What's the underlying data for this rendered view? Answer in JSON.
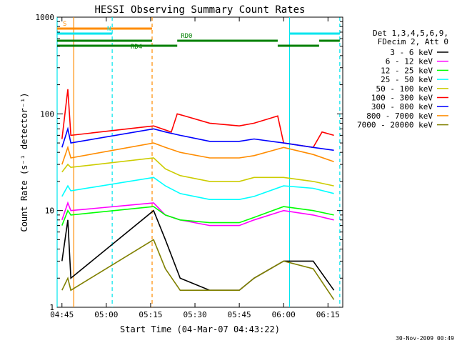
{
  "chart_data": {
    "type": "line",
    "title": "HESSI Observing Summary Count Rates",
    "xlabel": "Start Time (04-Mar-07 04:43:22)",
    "ylabel": "Count Rate (s⁻¹ detector⁻¹)",
    "yscale": "log",
    "ylim": [
      1,
      1000
    ],
    "xlim": [
      "04:43:22",
      "06:20:00"
    ],
    "x_ticks": [
      "04:45",
      "05:00",
      "05:15",
      "05:30",
      "05:45",
      "06:00",
      "06:15"
    ],
    "y_ticks": [
      "1",
      "10",
      "100",
      "1000"
    ],
    "legend_position": "right",
    "legend_header": [
      "Det 1,3,4,5,6,9,",
      "FDecim 2, Att 0"
    ],
    "footer_date": "30-Nov-2009 00:49",
    "vertical_markers": [
      {
        "time": "04:43:22",
        "color": "#00e5ee",
        "style": "solid"
      },
      {
        "time": "04:49:00",
        "color": "#ff8c00",
        "style": "solid"
      },
      {
        "time": "05:02:00",
        "color": "#00e5ee",
        "style": "dashed"
      },
      {
        "time": "05:15:30",
        "color": "#ff8c00",
        "style": "dashed"
      },
      {
        "time": "06:02:00",
        "color": "#00e5ee",
        "style": "solid"
      },
      {
        "time": "06:19:00",
        "color": "#00e5ee",
        "style": "dashed"
      }
    ],
    "flag_bars": [
      {
        "label": "S",
        "color": "#ff8c00",
        "segments": [
          [
            "04:43:22",
            "05:15:30"
          ]
        ]
      },
      {
        "label": "N",
        "color": "#00e5ee",
        "segments": [
          [
            "04:43:22",
            "05:02:00"
          ],
          [
            "06:02:00",
            "06:19:00"
          ]
        ]
      },
      {
        "label": "RD0",
        "color": "#008000",
        "segments": [
          [
            "04:43:22",
            "05:15:30"
          ],
          [
            "05:24:00",
            "05:58:00"
          ],
          [
            "06:12:00",
            "06:19:00"
          ]
        ]
      },
      {
        "label": "RD4",
        "color": "#008000",
        "segments": [
          [
            "04:43:22",
            "05:15:30"
          ],
          [
            "05:15:30",
            "05:24:00"
          ],
          [
            "05:58:00",
            "06:12:00"
          ]
        ]
      }
    ],
    "series": [
      {
        "name": "3 - 6 keV",
        "color": "#000000",
        "points": [
          [
            "04:45",
            3
          ],
          [
            "04:47",
            8
          ],
          [
            "04:48",
            2
          ],
          [
            "05:16",
            10
          ],
          [
            "05:20",
            5
          ],
          [
            "05:25",
            2
          ],
          [
            "05:35",
            1.5
          ],
          [
            "05:45",
            1.5
          ],
          [
            "05:50",
            2
          ],
          [
            "06:00",
            3
          ],
          [
            "06:10",
            3
          ],
          [
            "06:17",
            1.5
          ]
        ]
      },
      {
        "name": "6 - 12 keV",
        "color": "#ff00ff",
        "points": [
          [
            "04:45",
            8
          ],
          [
            "04:47",
            12
          ],
          [
            "04:48",
            10
          ],
          [
            "05:16",
            12
          ],
          [
            "05:20",
            9
          ],
          [
            "05:25",
            8
          ],
          [
            "05:35",
            7
          ],
          [
            "05:45",
            7
          ],
          [
            "05:50",
            8
          ],
          [
            "06:00",
            10
          ],
          [
            "06:10",
            9
          ],
          [
            "06:17",
            8
          ]
        ]
      },
      {
        "name": "12 - 25 keV",
        "color": "#00ff00",
        "points": [
          [
            "04:45",
            7
          ],
          [
            "04:47",
            10
          ],
          [
            "04:48",
            9
          ],
          [
            "05:16",
            11
          ],
          [
            "05:20",
            9
          ],
          [
            "05:25",
            8
          ],
          [
            "05:35",
            7.5
          ],
          [
            "05:45",
            7.5
          ],
          [
            "05:50",
            8.5
          ],
          [
            "06:00",
            11
          ],
          [
            "06:10",
            10
          ],
          [
            "06:17",
            9
          ]
        ]
      },
      {
        "name": "25 - 50 keV",
        "color": "#00ffff",
        "points": [
          [
            "04:45",
            14
          ],
          [
            "04:47",
            18
          ],
          [
            "04:48",
            16
          ],
          [
            "05:16",
            22
          ],
          [
            "05:20",
            18
          ],
          [
            "05:25",
            15
          ],
          [
            "05:35",
            13
          ],
          [
            "05:45",
            13
          ],
          [
            "05:50",
            14
          ],
          [
            "06:00",
            18
          ],
          [
            "06:10",
            17
          ],
          [
            "06:17",
            15
          ]
        ]
      },
      {
        "name": "50 - 100 keV",
        "color": "#cccc00",
        "points": [
          [
            "04:45",
            25
          ],
          [
            "04:47",
            30
          ],
          [
            "04:48",
            28
          ],
          [
            "05:16",
            35
          ],
          [
            "05:20",
            27
          ],
          [
            "05:25",
            23
          ],
          [
            "05:35",
            20
          ],
          [
            "05:45",
            20
          ],
          [
            "05:50",
            22
          ],
          [
            "06:00",
            22
          ],
          [
            "06:10",
            20
          ],
          [
            "06:17",
            18
          ]
        ]
      },
      {
        "name": "100 - 300 keV",
        "color": "#ff0000",
        "points": [
          [
            "04:45",
            55
          ],
          [
            "04:47",
            180
          ],
          [
            "04:48",
            60
          ],
          [
            "05:16",
            75
          ],
          [
            "05:22",
            65
          ],
          [
            "05:24",
            100
          ],
          [
            "05:35",
            80
          ],
          [
            "05:45",
            75
          ],
          [
            "05:50",
            80
          ],
          [
            "05:58",
            95
          ],
          [
            "06:00",
            50
          ],
          [
            "06:10",
            45
          ],
          [
            "06:13",
            65
          ],
          [
            "06:17",
            60
          ]
        ]
      },
      {
        "name": "300 - 800 keV",
        "color": "#0000ff",
        "points": [
          [
            "04:45",
            45
          ],
          [
            "04:47",
            70
          ],
          [
            "04:48",
            50
          ],
          [
            "05:16",
            70
          ],
          [
            "05:20",
            65
          ],
          [
            "05:25",
            60
          ],
          [
            "05:35",
            52
          ],
          [
            "05:45",
            52
          ],
          [
            "05:50",
            55
          ],
          [
            "06:00",
            50
          ],
          [
            "06:10",
            45
          ],
          [
            "06:17",
            42
          ]
        ]
      },
      {
        "name": "800 - 7000 keV",
        "color": "#ff8c00",
        "points": [
          [
            "04:45",
            30
          ],
          [
            "04:47",
            45
          ],
          [
            "04:48",
            35
          ],
          [
            "05:16",
            50
          ],
          [
            "05:20",
            45
          ],
          [
            "05:25",
            40
          ],
          [
            "05:35",
            35
          ],
          [
            "05:45",
            35
          ],
          [
            "05:50",
            37
          ],
          [
            "06:00",
            45
          ],
          [
            "06:10",
            38
          ],
          [
            "06:17",
            32
          ]
        ]
      },
      {
        "name": "7000 - 20000 keV",
        "color": "#808000",
        "points": [
          [
            "04:45",
            1.5
          ],
          [
            "04:47",
            2
          ],
          [
            "04:48",
            1.5
          ],
          [
            "05:16",
            5
          ],
          [
            "05:20",
            2.5
          ],
          [
            "05:25",
            1.5
          ],
          [
            "05:35",
            1.5
          ],
          [
            "05:45",
            1.5
          ],
          [
            "05:50",
            2
          ],
          [
            "06:00",
            3
          ],
          [
            "06:10",
            2.5
          ],
          [
            "06:17",
            1.2
          ]
        ]
      }
    ]
  }
}
